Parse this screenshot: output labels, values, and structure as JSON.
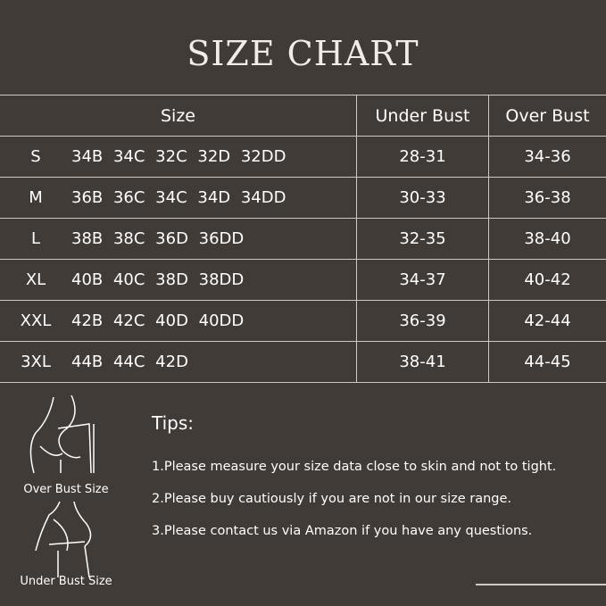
{
  "title": "SIZE CHART",
  "headers": {
    "size": "Size",
    "under_bust": "Under Bust",
    "over_bust": "Over Bust"
  },
  "rows": [
    {
      "size": "S",
      "cups": "34B 34C 32C 32D 32DD",
      "under": "28-31",
      "over": "34-36"
    },
    {
      "size": "M",
      "cups": "36B 36C 34C 34D 34DD",
      "under": "30-33",
      "over": "36-38"
    },
    {
      "size": "L",
      "cups": "38B 38C 36D 36DD",
      "under": "32-35",
      "over": "38-40"
    },
    {
      "size": "XL",
      "cups": "40B 40C 38D 38DD",
      "under": "34-37",
      "over": "40-42"
    },
    {
      "size": "XXL",
      "cups": "42B 42C 40D 40DD",
      "under": "36-39",
      "over": "42-44"
    },
    {
      "size": "3XL",
      "cups": "44B 44C 42D",
      "under": "38-41",
      "over": "44-45"
    }
  ],
  "figures": {
    "over": "Over Bust Size",
    "under": "Under Bust Size"
  },
  "tips": {
    "title": "Tips:",
    "items": [
      "1.Please measure your size data close to skin and not to tight.",
      "2.Please buy cautiously if you are not in our size range.",
      "3.Please contact us via Amazon if you have any questions."
    ]
  },
  "colors": {
    "background": "#413b37",
    "lines": "#cfcac5",
    "text": "#ffffff"
  }
}
